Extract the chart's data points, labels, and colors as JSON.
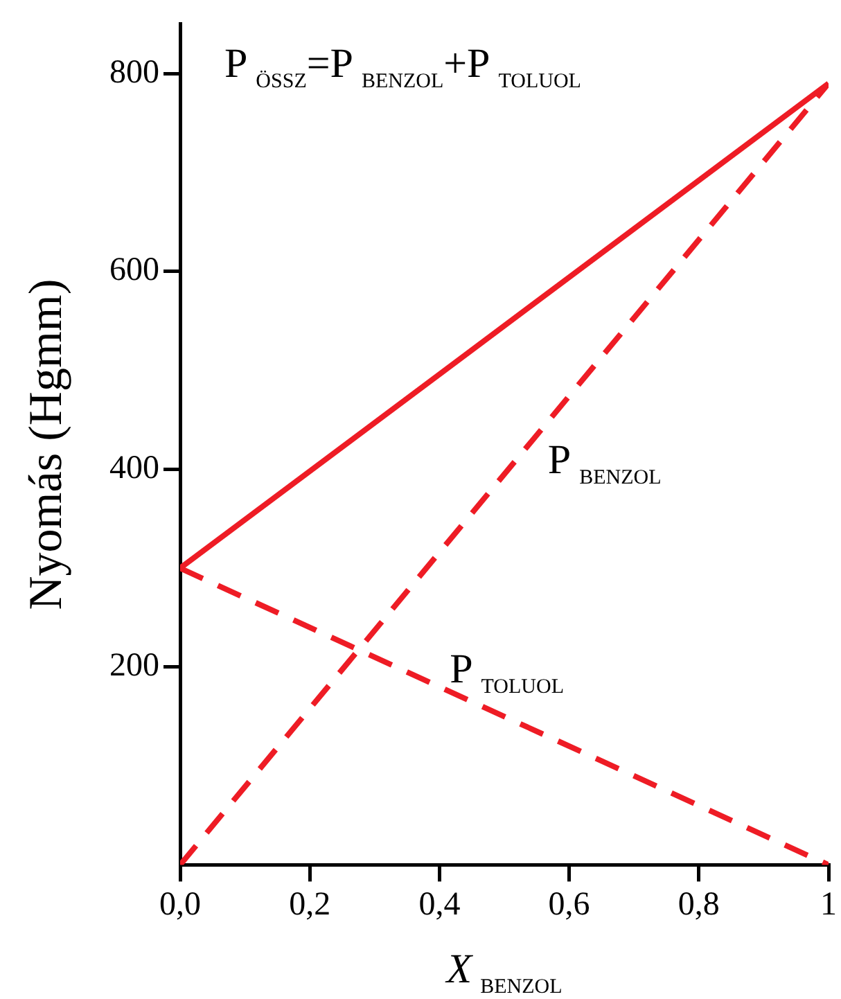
{
  "chart_data": {
    "type": "line",
    "title": "P$_{ÖSSZ}$=P$_{BENZOL}$+P$_{TOLUOL}$",
    "xlabel": "X$_{BENZOL}$",
    "ylabel": "Nyomás (Hgmm)",
    "x": [
      0,
      1
    ],
    "series": [
      {
        "color": "#ee1c25",
        "values": [
          300,
          790
        ],
        "line_style": "solid"
      },
      {
        "color": "#ee1c25",
        "values": [
          0,
          790
        ],
        "line_style": "dashed"
      },
      {
        "color": "#ee1c25",
        "values": [
          300,
          0
        ],
        "line_style": "dashed"
      }
    ],
    "xlim": [
      0,
      1
    ],
    "xticks": [
      {
        "value": 0,
        "label": "0,0"
      },
      {
        "value": 0.2,
        "label": "0,2"
      },
      {
        "value": 0.4,
        "label": "0,4"
      },
      {
        "value": 0.6,
        "label": "0,6"
      },
      {
        "value": 0.8,
        "label": "0,8"
      },
      1
    ],
    "ylim": [
      0,
      850
    ],
    "yticks": [
      200,
      400,
      600,
      800
    ],
    "annotations": [
      {
        "text": "P$_{BENZOL}$",
        "x": 0.55,
        "y": 435
      },
      {
        "text": "P$_{TOLUOL}$",
        "x": 0.45,
        "y": 165
      }
    ],
    "grid": false,
    "legend": false,
    "marker": "none"
  }
}
